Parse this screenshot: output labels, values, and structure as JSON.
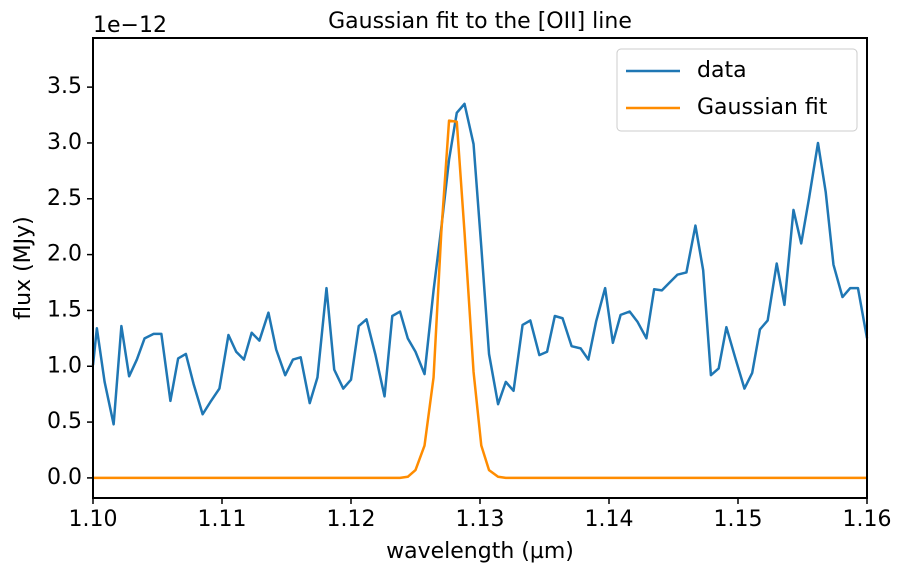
{
  "chart_data": {
    "type": "line",
    "title": "Gaussian fit to the [OII] line",
    "xlabel": "wavelength (µm)",
    "ylabel": "flux (MJy)",
    "y_offset_label": "1e−12",
    "xlim": [
      1.1,
      1.16
    ],
    "ylim": [
      -0.18,
      3.94
    ],
    "xticks": [
      {
        "value": 1.1,
        "label": "1.10"
      },
      1.11,
      1.12,
      1.13,
      1.14,
      1.15,
      1.16
    ],
    "yticks": [
      {
        "value": 0,
        "label": "0.0"
      },
      0.5,
      {
        "value": 1,
        "label": "1.0"
      },
      1.5,
      {
        "value": 2,
        "label": "2.0"
      },
      2.5,
      {
        "value": 3,
        "label": "3.0"
      },
      3.5
    ],
    "legend": "upper right",
    "grid": false,
    "x": [
      1.1,
      1.1003,
      1.1009,
      1.1016,
      1.1022,
      1.1028,
      1.1034,
      1.104,
      1.1047,
      1.1053,
      1.106,
      1.1066,
      1.1072,
      1.1078,
      1.1085,
      1.1091,
      1.1098,
      1.1105,
      1.1111,
      1.1117,
      1.1123,
      1.1129,
      1.1136,
      1.1142,
      1.1149,
      1.1155,
      1.1161,
      1.1168,
      1.1174,
      1.1181,
      1.1187,
      1.1194,
      1.12,
      1.1206,
      1.1212,
      1.1219,
      1.1226,
      1.1232,
      1.1238,
      1.1244,
      1.125,
      1.1257,
      1.1264,
      1.127,
      1.1276,
      1.1282,
      1.1288,
      1.1295,
      1.1301,
      1.1307,
      1.1314,
      1.132,
      1.1326,
      1.1333,
      1.1339,
      1.1346,
      1.1352,
      1.1358,
      1.1364,
      1.1371,
      1.1378,
      1.1384,
      1.139,
      1.1397,
      1.1403,
      1.1409,
      1.1416,
      1.1422,
      1.1429,
      1.1435,
      1.1441,
      1.1447,
      1.1453,
      1.146,
      1.1467,
      1.1473,
      1.1479,
      1.1485,
      1.1491,
      1.1498,
      1.1505,
      1.1511,
      1.1517,
      1.1523,
      1.153,
      1.1536,
      1.1543,
      1.1549,
      1.1555,
      1.1562,
      1.1568,
      1.1574,
      1.1581,
      1.1587,
      1.1593,
      1.16
    ],
    "series": [
      {
        "name": "data",
        "color": "#1f77b4",
        "values": [
          1.01,
          1.34,
          0.86,
          0.48,
          1.36,
          0.91,
          1.06,
          1.25,
          1.29,
          1.29,
          0.69,
          1.07,
          1.11,
          0.84,
          0.57,
          0.68,
          0.8,
          1.28,
          1.13,
          1.06,
          1.3,
          1.23,
          1.48,
          1.15,
          0.92,
          1.06,
          1.08,
          0.67,
          0.9,
          1.7,
          0.97,
          0.8,
          0.88,
          1.36,
          1.42,
          1.1,
          0.73,
          1.45,
          1.49,
          1.25,
          1.13,
          0.93,
          1.68,
          2.24,
          2.85,
          3.27,
          3.35,
          2.99,
          2.07,
          1.11,
          0.66,
          0.86,
          0.78,
          1.37,
          1.41,
          1.1,
          1.13,
          1.45,
          1.43,
          1.18,
          1.16,
          1.06,
          1.4,
          1.7,
          1.21,
          1.46,
          1.49,
          1.4,
          1.25,
          1.69,
          1.68,
          1.75,
          1.82,
          1.84,
          2.26,
          1.86,
          0.92,
          0.98,
          1.35,
          1.07,
          0.8,
          0.94,
          1.33,
          1.41,
          1.92,
          1.55,
          2.4,
          2.1,
          2.5,
          3.0,
          2.56,
          1.91,
          1.62,
          1.7,
          1.7,
          1.25
        ]
      },
      {
        "name": "Gaussian fit",
        "color": "#ff8c00",
        "values": [
          0,
          0,
          0,
          0,
          0,
          0,
          0,
          0,
          0,
          0,
          0,
          0,
          0,
          0,
          0,
          0,
          0,
          0,
          0,
          0,
          0,
          0,
          0,
          0,
          0,
          0,
          0,
          0,
          0,
          0,
          0,
          0,
          0,
          0,
          0,
          0,
          0,
          0,
          0,
          0.01,
          0.07,
          0.29,
          0.9,
          2.2,
          3.2,
          3.19,
          2.2,
          0.95,
          0.29,
          0.07,
          0.01,
          0,
          0,
          0,
          0,
          0,
          0,
          0,
          0,
          0,
          0,
          0,
          0,
          0,
          0,
          0,
          0,
          0,
          0,
          0,
          0,
          0,
          0,
          0,
          0,
          0,
          0,
          0,
          0,
          0,
          0,
          0,
          0,
          0,
          0,
          0,
          0,
          0,
          0,
          0,
          0,
          0,
          0,
          0,
          0,
          0
        ]
      }
    ]
  }
}
